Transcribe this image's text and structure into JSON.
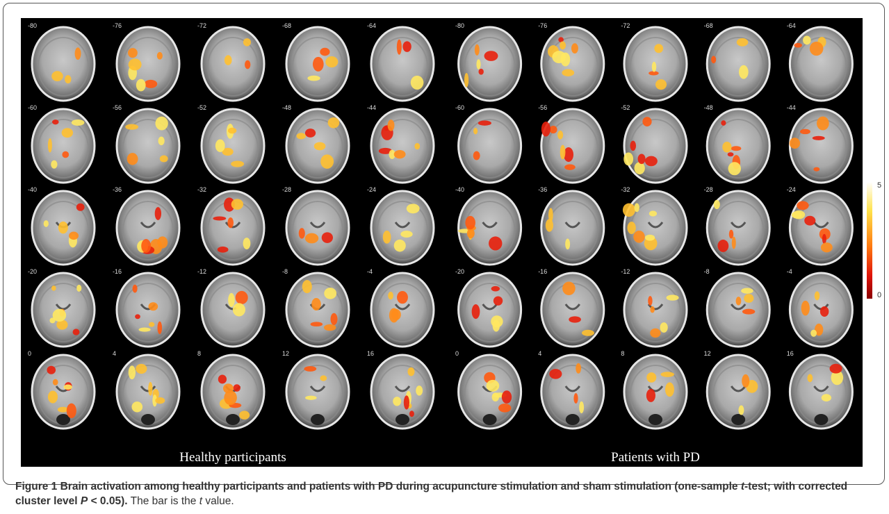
{
  "figure": {
    "panels": [
      {
        "label": "Healthy participants",
        "slices": [
          [
            "-80",
            "-76",
            "-72",
            "-68",
            "-64"
          ],
          [
            "-60",
            "-56",
            "-52",
            "-48",
            "-44"
          ],
          [
            "-40",
            "-36",
            "-32",
            "-28",
            "-24"
          ],
          [
            "-20",
            "-16",
            "-12",
            "-8",
            "-4"
          ],
          [
            "0",
            "4",
            "8",
            "12",
            "16"
          ]
        ]
      },
      {
        "label": "Patients with PD",
        "slices": [
          [
            "-80",
            "-76",
            "-72",
            "-68",
            "-64"
          ],
          [
            "-60",
            "-56",
            "-52",
            "-48",
            "-44"
          ],
          [
            "-40",
            "-36",
            "-32",
            "-28",
            "-24"
          ],
          [
            "-20",
            "-16",
            "-12",
            "-8",
            "-4"
          ],
          [
            "0",
            "4",
            "8",
            "12",
            "16"
          ]
        ]
      }
    ],
    "colorbar": {
      "max_label": "5",
      "min_label": "0"
    }
  },
  "caption": {
    "label": "Figure 1",
    "title_1": "Brain activation among healthy participants and patients with PD during acupuncture stimulation and sham stimulation (one-sample",
    "title_t": "t",
    "title_2": "-test; with corrected cluster level",
    "title_P": "P",
    "title_3": "< 0.05).",
    "note_1": "The bar is the",
    "note_t": "t",
    "note_2": "value."
  }
}
